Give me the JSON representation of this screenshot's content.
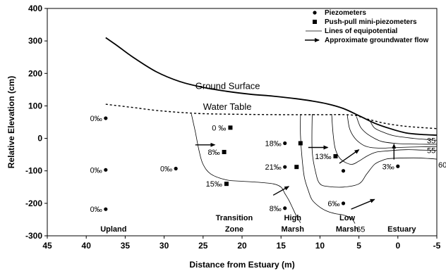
{
  "chart_data": {
    "type": "scatter",
    "xlabel": "Distance from Estuary (m)",
    "ylabel": "Relative Elevation (cm)",
    "xlim": [
      45,
      -5
    ],
    "ylim": [
      -300,
      400
    ],
    "x_ticks": [
      45,
      40,
      35,
      30,
      25,
      20,
      15,
      10,
      5,
      0,
      -5
    ],
    "y_ticks": [
      400,
      300,
      200,
      100,
      0,
      -100,
      -200,
      -300
    ],
    "grid": false,
    "legend_position": "top-right",
    "legend": [
      {
        "label": "Piezometers",
        "marker": "circle"
      },
      {
        "label": "Push-pull mini-piezometers",
        "marker": "square"
      },
      {
        "label": "Lines of equipotential",
        "marker": "line"
      },
      {
        "label": "Approximate groundwater flow",
        "marker": "arrow"
      }
    ],
    "lines": [
      {
        "label": "Ground Surface",
        "style": "solid-thick",
        "points": [
          [
            37.5,
            310
          ],
          [
            36,
            285
          ],
          [
            34,
            250
          ],
          [
            31,
            205
          ],
          [
            28,
            175
          ],
          [
            25,
            157
          ],
          [
            22,
            145
          ],
          [
            19,
            136
          ],
          [
            16,
            130
          ],
          [
            13,
            122
          ],
          [
            11,
            115
          ],
          [
            9,
            106
          ],
          [
            7,
            92
          ],
          [
            5,
            70
          ],
          [
            3,
            47
          ],
          [
            1,
            30
          ],
          [
            -1,
            17
          ],
          [
            -3,
            12
          ],
          [
            -5,
            10
          ]
        ]
      },
      {
        "label": "Water Table",
        "style": "dashed",
        "points": [
          [
            37.5,
            105
          ],
          [
            34,
            95
          ],
          [
            31,
            86
          ],
          [
            28,
            80
          ],
          [
            25,
            76
          ],
          [
            20,
            74
          ],
          [
            15,
            73
          ],
          [
            10,
            73
          ],
          [
            6,
            72
          ],
          [
            4,
            60
          ],
          [
            2,
            48
          ],
          [
            0,
            40
          ],
          [
            -2,
            35
          ],
          [
            -5,
            30
          ]
        ]
      }
    ],
    "equipotentials": [
      {
        "label": "",
        "points": [
          [
            26.5,
            75
          ],
          [
            26,
            20
          ],
          [
            25.5,
            -40
          ],
          [
            25,
            -80
          ],
          [
            24,
            -110
          ],
          [
            22,
            -128
          ],
          [
            20,
            -132
          ],
          [
            18,
            -135
          ],
          [
            16,
            -140
          ],
          [
            15,
            -150
          ],
          [
            14.5,
            -170
          ],
          [
            14,
            -190
          ],
          [
            13.5,
            -215
          ],
          [
            13,
            -240
          ],
          [
            12.5,
            -260
          ]
        ]
      },
      {
        "label": "65",
        "points": [
          [
            12.5,
            75
          ],
          [
            12.5,
            10
          ],
          [
            12.3,
            -60
          ],
          [
            12,
            -120
          ],
          [
            11.5,
            -160
          ],
          [
            11,
            -190
          ],
          [
            10,
            -212
          ],
          [
            9,
            -225
          ],
          [
            8,
            -232
          ],
          [
            7,
            -236
          ],
          [
            6,
            -246
          ],
          [
            5.5,
            -262
          ]
        ]
      },
      {
        "label": "60",
        "points": [
          [
            11,
            75
          ],
          [
            11,
            -40
          ],
          [
            10.5,
            -110
          ],
          [
            10,
            -140
          ],
          [
            9,
            -148
          ],
          [
            7,
            -150
          ],
          [
            5,
            -140
          ],
          [
            4,
            -110
          ],
          [
            3,
            -80
          ],
          [
            2,
            -68
          ],
          [
            1,
            -62
          ],
          [
            -2,
            -60
          ],
          [
            -4,
            -62
          ],
          [
            -5,
            -64
          ]
        ]
      },
      {
        "label": "55",
        "points": [
          [
            8.5,
            75
          ],
          [
            8.3,
            10
          ],
          [
            8,
            -35
          ],
          [
            7.3,
            -65
          ],
          [
            6,
            -80
          ],
          [
            5,
            -70
          ],
          [
            4,
            -55
          ],
          [
            3,
            -44
          ],
          [
            2,
            -40
          ],
          [
            -1,
            -35
          ],
          [
            -3,
            -36
          ],
          [
            -5,
            -37
          ]
        ]
      },
      {
        "label": "",
        "points": [
          [
            6.5,
            74
          ],
          [
            6.2,
            30
          ],
          [
            5.5,
            0
          ],
          [
            4.5,
            -20
          ],
          [
            3.5,
            -28
          ],
          [
            2,
            -30
          ],
          [
            0,
            -28
          ],
          [
            -3,
            -26
          ],
          [
            -5,
            -25
          ]
        ]
      },
      {
        "label": "",
        "points": [
          [
            5.3,
            66
          ],
          [
            4.8,
            35
          ],
          [
            4,
            15
          ],
          [
            3,
            0
          ],
          [
            2,
            -10
          ],
          [
            0,
            -16
          ],
          [
            -3,
            -18
          ],
          [
            -5,
            -18
          ]
        ]
      },
      {
        "label": "35",
        "points": [
          [
            3.5,
            50
          ],
          [
            3,
            32
          ],
          [
            2,
            20
          ],
          [
            0.5,
            8
          ],
          [
            -2,
            0
          ],
          [
            -4,
            -4
          ],
          [
            -5,
            -6
          ]
        ]
      }
    ],
    "piezometers": [
      {
        "x": 37.5,
        "y": 62,
        "salinity": "0‰"
      },
      {
        "x": 37.5,
        "y": -97,
        "salinity": "0‰"
      },
      {
        "x": 37.5,
        "y": -218,
        "salinity": "0‰"
      },
      {
        "x": 28.5,
        "y": -93,
        "salinity": "0‰"
      },
      {
        "x": 14.5,
        "y": -15,
        "salinity": "18‰"
      },
      {
        "x": 14.5,
        "y": -88,
        "salinity": "21‰"
      },
      {
        "x": 14.5,
        "y": -215,
        "salinity": "8‰"
      },
      {
        "x": 7,
        "y": -100,
        "salinity": ""
      },
      {
        "x": 7,
        "y": -200,
        "salinity": "6‰"
      },
      {
        "x": 0,
        "y": -86,
        "salinity": "3‰"
      }
    ],
    "mini_piezometers": [
      {
        "x": 21.5,
        "y": 33,
        "salinity": "0 ‰"
      },
      {
        "x": 22.3,
        "y": -42,
        "salinity": "8‰"
      },
      {
        "x": 22,
        "y": -140,
        "salinity": "15‰"
      },
      {
        "x": 12.5,
        "y": -15,
        "salinity": ""
      },
      {
        "x": 13,
        "y": -88,
        "salinity": ""
      },
      {
        "x": 8,
        "y": -55,
        "salinity": "13‰"
      }
    ],
    "flow_arrows": [
      {
        "from": [
          26,
          -20
        ],
        "to": [
          23.5,
          -20
        ]
      },
      {
        "from": [
          16,
          -175
        ],
        "to": [
          14,
          -148
        ]
      },
      {
        "from": [
          11.5,
          -28
        ],
        "to": [
          9,
          -28
        ]
      },
      {
        "from": [
          7.5,
          -77
        ],
        "to": [
          5,
          -35
        ]
      },
      {
        "from": [
          6,
          -218
        ],
        "to": [
          3,
          -188
        ]
      },
      {
        "from": [
          0.5,
          -65
        ],
        "to": [
          0.5,
          -18
        ]
      }
    ],
    "annotations": [
      {
        "text": "Ground Surface",
        "x": 26,
        "y": 152
      },
      {
        "text": "Water Table",
        "x": 25,
        "y": 88
      }
    ],
    "zones": [
      {
        "text": "Upland",
        "x": 36.5
      },
      {
        "text": "Transition",
        "text2": "Zone",
        "x": 21
      },
      {
        "text": "High",
        "text2": "Marsh",
        "x": 13.5
      },
      {
        "text": "Low",
        "text2": "Marsh",
        "x": 6.5
      },
      {
        "text": "Estuary",
        "x": -0.5
      }
    ]
  }
}
